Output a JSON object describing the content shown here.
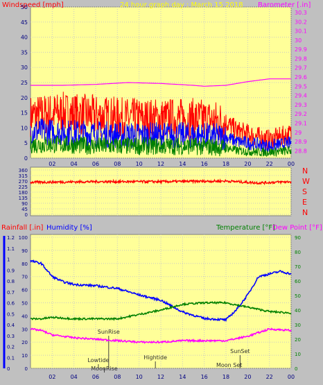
{
  "chart_data": [
    {
      "type": "line",
      "title": "24 hour graph day : March 15 2018",
      "ylabel_left": "Windspeed [mph]",
      "ylabel_right": "Barometer [.in]",
      "x_ticks": [
        "02",
        "04",
        "06",
        "08",
        "10",
        "12",
        "14",
        "16",
        "18",
        "20",
        "22",
        "00"
      ],
      "y_left_ticks": [
        0,
        5,
        10,
        15,
        20,
        25,
        30,
        35,
        40,
        45,
        50
      ],
      "ylim_left": [
        0,
        50
      ],
      "y_right_ticks": [
        "28.8",
        "28.9",
        "29",
        "29.1",
        "29.2",
        "29.3",
        "29.4",
        "29.5",
        "29.6",
        "29.7",
        "29.8",
        "29.9",
        "30",
        "30.1",
        "30.2",
        "30.3"
      ],
      "ylim_right": [
        28.72,
        30.36
      ],
      "series": [
        {
          "axis": "right",
          "color": "#ff00ff",
          "x": [
            0,
            3,
            6,
            9,
            12,
            15,
            16,
            18,
            20,
            22,
            24
          ],
          "values": [
            29.51,
            29.51,
            29.52,
            29.54,
            29.53,
            29.51,
            29.5,
            29.51,
            29.55,
            29.58,
            29.58
          ]
        },
        {
          "axis": "left",
          "color": "#ff0000",
          "x": [
            0,
            3,
            6,
            9,
            12,
            15,
            18,
            19,
            21,
            22,
            24
          ],
          "values": [
            14,
            15,
            14,
            13,
            13,
            13,
            12,
            9,
            7,
            6,
            8
          ]
        },
        {
          "axis": "left",
          "color": "#0000ff",
          "x": [
            0,
            3,
            6,
            9,
            12,
            15,
            18,
            19,
            21,
            22,
            24
          ],
          "values": [
            9,
            8.5,
            8,
            7.5,
            7.5,
            7.5,
            7,
            5.5,
            4.5,
            4,
            5
          ]
        },
        {
          "axis": "left",
          "color": "#008000",
          "x": [
            0,
            3,
            6,
            9,
            12,
            15,
            18,
            19,
            21,
            22,
            24
          ],
          "values": [
            4.5,
            4.5,
            4,
            4,
            4,
            4,
            3.5,
            2.5,
            2,
            2,
            2.5
          ]
        }
      ],
      "legend": "top-left and top-right as axis titles"
    },
    {
      "type": "line",
      "ylabel_right_letters": [
        "N",
        "W",
        "S",
        "E",
        "N"
      ],
      "y_left_ticks": [
        0,
        45,
        90,
        135,
        180,
        225,
        270,
        315,
        360
      ],
      "ylim": [
        0,
        360
      ],
      "series": [
        {
          "color": "#ff0000",
          "x": [
            0,
            6,
            12,
            18,
            21,
            24
          ],
          "values": [
            260,
            265,
            265,
            270,
            255,
            265
          ]
        }
      ]
    },
    {
      "type": "line",
      "ylabel_left_1": "Rainfall [.in]",
      "ylabel_left_2": "Humidity [%]",
      "ylabel_right_1": "Temperature [°F]",
      "ylabel_right_2": "Dew Point [°F]",
      "x_ticks": [
        "02",
        "04",
        "06",
        "08",
        "10",
        "12",
        "14",
        "16",
        "18",
        "20",
        "22",
        "00"
      ],
      "y_rain_ticks": [
        "0",
        "0.1",
        "0.2",
        "0.3",
        "0.4",
        "0.5",
        "0.6",
        "0.7",
        "0.8",
        "0.9",
        "1",
        "1.1",
        "1.2"
      ],
      "y_hum_ticks": [
        0,
        10,
        20,
        30,
        40,
        50,
        60,
        70,
        80,
        90,
        100
      ],
      "y_temp_ticks": [
        0,
        10,
        20,
        30,
        40,
        50,
        60,
        70,
        80,
        90
      ],
      "ylim_hum": [
        0,
        100
      ],
      "ylim_temp": [
        0,
        90
      ],
      "annotations": [
        {
          "text": "Lowtide",
          "x": 6.25
        },
        {
          "text": "SunRise",
          "x": 7.2
        },
        {
          "text": "MoonRise",
          "x": 6.8
        },
        {
          "text": "Hightide",
          "x": 11.5
        },
        {
          "text": "SunSet",
          "x": 19.3
        },
        {
          "text": "Moon Set",
          "x": 18.3
        }
      ],
      "series": [
        {
          "name": "Humidity",
          "color": "#0000ff",
          "x": [
            0,
            1,
            2,
            3,
            4,
            6,
            8,
            10,
            12,
            14,
            16,
            18,
            19,
            20,
            21,
            22,
            23,
            24
          ],
          "values": [
            82,
            80,
            70,
            66,
            64,
            63,
            61,
            56,
            52,
            43,
            38,
            37,
            45,
            56,
            70,
            72,
            74,
            72
          ]
        },
        {
          "name": "Temperature",
          "color": "#008000",
          "x": [
            0,
            1,
            2,
            4,
            8,
            10,
            12,
            14,
            16,
            18,
            20,
            22,
            24
          ],
          "values": [
            34,
            34,
            35,
            34,
            34,
            37,
            40,
            44,
            45,
            45,
            42,
            39,
            38
          ]
        },
        {
          "name": "Dew Point",
          "color": "#ff00ff",
          "x": [
            0,
            1,
            2,
            4,
            8,
            10,
            12,
            14,
            16,
            18,
            20,
            22,
            24
          ],
          "values": [
            27,
            26,
            23,
            21,
            19,
            18,
            18,
            19,
            19,
            19,
            22,
            27,
            26
          ]
        }
      ]
    }
  ]
}
